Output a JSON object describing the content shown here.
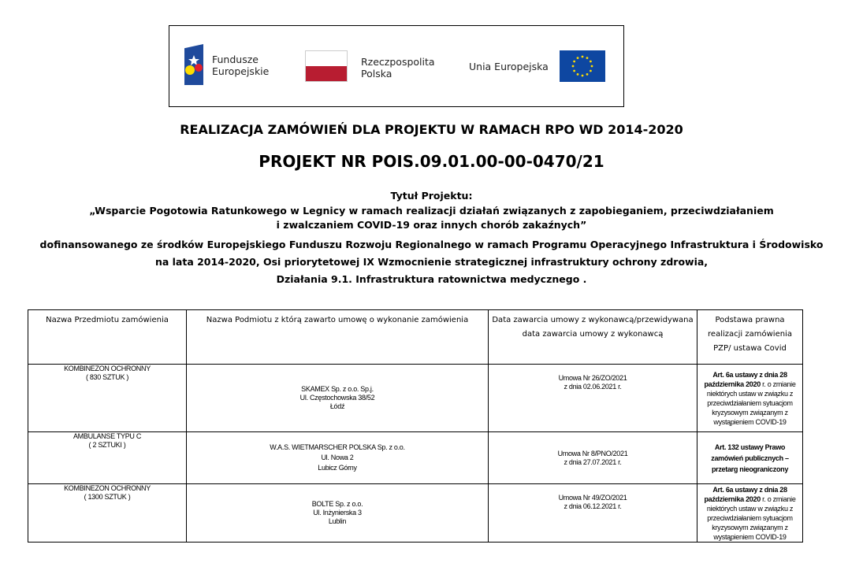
{
  "logos": {
    "fe_line1": "Fundusze",
    "fe_line2": "Europejskie",
    "rp_line1": "Rzeczpospolita",
    "rp_line2": "Polska",
    "ue": "Unia Europejska",
    "colors": {
      "eu_blue": "#0e47a1",
      "pl_red": "#b81d31",
      "eu_star": "#ffdd00"
    }
  },
  "title": "REALIZACJA ZAMÓWIEŃ DLA PROJEKTU W RAMACH RPO WD 2014-2020",
  "project_no": "PROJEKT NR POIS.09.01.00-00-0470/21",
  "intro": [
    "Tytuł Projektu:",
    "„Wsparcie Pogotowia Ratunkowego w Legnicy w ramach realizacji działań związanych z zapobieganiem, przeciwdziałaniem",
    "i zwalczaniem  COVID-19 oraz innych chorób zakaźnych”",
    "dofinansowanego  ze środków Europejskiego Funduszu Rozwoju Regionalnego w ramach Programu Operacyjnego  Infrastruktura i Środowisko",
    "na lata 2014-2020,  Osi priorytetowej IX Wzmocnienie strategicznej infrastruktury ochrony zdrowia,",
    "Działania 9.1. Infrastruktura ratownictwa medycznego ."
  ],
  "table": {
    "headers": [
      "Nazwa Przedmiotu zamówienia",
      "Nazwa  Podmiotu z którą zawarto umowę o wykonanie zamówienia",
      "Data zawarcia umowy z wykonawcą/przewidywana data zawarcia umowy z wykonawcą",
      "Podstawa prawna realizacji zamówienia PZP/ ustawa Covid"
    ],
    "rows": [
      {
        "item": [
          "KOMBINEZON OCHRONNY",
          "( 830 SZTUK )"
        ],
        "contractor": [
          "SKAMEX Sp. z o.o. Sp.j.",
          "Ul. Częstochowska 38/52",
          "Łódź"
        ],
        "contract": [
          "Umowa Nr 26/ZO/2021",
          "z dnia 02.06.2021 r."
        ],
        "basis_bold1": "Art. 6a ustawy z dnia 28 października 2020",
        "basis_rest": " r. o zmianie niektórych ustaw w związku z przeciwdziałaniem sytuacjom kryzysowym związanym z wystąpieniem COVID-19"
      },
      {
        "item": [
          "AMBULANSE TYPU C",
          "( 2 SZTUKI )"
        ],
        "contractor": [
          "W.A.S. WIETMARSCHER POLSKA Sp. z o.o.",
          "Ul. Nowa 2",
          "Lubicz Górny"
        ],
        "contract": [
          "Umowa Nr 8/PNO/2021",
          "z dnia 27.07.2021 r."
        ],
        "basis_bold1": "Art. 132  ustawy Prawo zamówień publicznych – przetarg nieograniczony",
        "basis_rest": ""
      },
      {
        "item": [
          "KOMBINEZON OCHRONNY",
          "( 1300 SZTUK )"
        ],
        "contractor": [
          "BOLTE Sp. z o.o.",
          "Ul. Inżynierska 3",
          "Lublin"
        ],
        "contract": [
          "Umowa Nr 49/ZO/2021",
          "z dnia 06.12.2021 r."
        ],
        "basis_bold1": "Art. 6a ustawy z dnia 28 października 2020",
        "basis_rest": " r. o zmianie niektórych ustaw w związku z przeciwdziałaniem sytuacjom kryzysowym związanym z wystąpieniem COVID-19"
      }
    ]
  }
}
